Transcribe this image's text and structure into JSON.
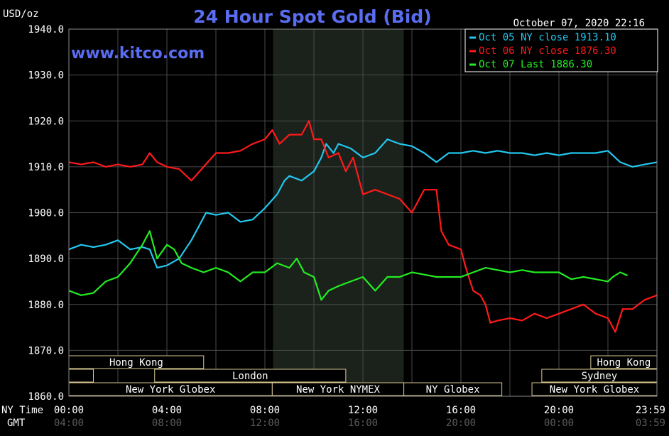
{
  "chart_data": {
    "type": "line",
    "title": "24 Hour Spot Gold (Bid)",
    "website": "www.kitco.com",
    "ylabel": "USD/oz",
    "timestamp": "October 07, 2020 22:16",
    "ylim": [
      1860,
      1940
    ],
    "y_ticks": [
      "1940.0",
      "1930.0",
      "1920.0",
      "1910.0",
      "1900.0",
      "1890.0",
      "1880.0",
      "1870.0",
      "1860.0"
    ],
    "x_range_hours": [
      0,
      24
    ],
    "x_row_label_ny": "NY Time",
    "x_row_label_gmt": "GMT",
    "x_ticks_ny": [
      {
        "h": 0,
        "label": "00:00"
      },
      {
        "h": 4,
        "label": "04:00"
      },
      {
        "h": 8,
        "label": "08:00"
      },
      {
        "h": 12,
        "label": "12:00"
      },
      {
        "h": 16,
        "label": "16:00"
      },
      {
        "h": 20,
        "label": "20:00"
      },
      {
        "h": 24,
        "label": "23:59"
      }
    ],
    "x_ticks_gmt": [
      {
        "h": 0,
        "label": "04:00"
      },
      {
        "h": 4,
        "label": "08:00"
      },
      {
        "h": 8,
        "label": "12:00"
      },
      {
        "h": 12,
        "label": "16:00"
      },
      {
        "h": 16,
        "label": "20:00"
      },
      {
        "h": 20,
        "label": "00:00"
      },
      {
        "h": 24,
        "label": "03:59"
      }
    ],
    "shaded_session_hours": [
      8.33,
      13.67
    ],
    "grid": true,
    "legend_position": "top-right",
    "legend": [
      {
        "label": "Oct 05 NY close 1913.10",
        "color": "#22c8f0"
      },
      {
        "label": "Oct 06 NY close 1876.30",
        "color": "#ff1a1a"
      },
      {
        "label": "Oct 07 Last 1886.30",
        "color": "#22ee22"
      }
    ],
    "series": [
      {
        "name": "Oct 05",
        "color": "#22c8f0",
        "x": [
          0,
          0.5,
          1,
          1.5,
          2,
          2.5,
          3,
          3.3,
          3.6,
          4,
          4.5,
          5,
          5.3,
          5.6,
          6,
          6.5,
          7,
          7.5,
          8,
          8.5,
          8.8,
          9,
          9.5,
          10,
          10.3,
          10.5,
          10.8,
          11,
          11.5,
          12,
          12.5,
          13,
          13.5,
          14,
          14.5,
          15,
          15.5,
          16,
          16.5,
          17,
          17.5,
          18,
          18.5,
          19,
          19.5,
          20,
          20.5,
          21,
          21.5,
          22,
          22.5,
          23,
          23.5,
          24
        ],
        "y": [
          1892,
          1893,
          1892.5,
          1893,
          1894,
          1892,
          1892.5,
          1892,
          1888,
          1888.5,
          1890,
          1894,
          1897,
          1900,
          1899.5,
          1900,
          1898,
          1898.5,
          1901,
          1904,
          1907,
          1908,
          1907,
          1909,
          1912,
          1915,
          1913,
          1915,
          1914,
          1912,
          1913,
          1916,
          1915,
          1914.5,
          1913,
          1911,
          1913,
          1913,
          1913.5,
          1913,
          1913.5,
          1913,
          1913,
          1912.5,
          1913,
          1912.5,
          1913,
          1913,
          1913,
          1913.5,
          1911,
          1910,
          1910.5,
          1911
        ]
      },
      {
        "name": "Oct 06",
        "color": "#ff1a1a",
        "x": [
          0,
          0.5,
          1,
          1.5,
          2,
          2.5,
          3,
          3.3,
          3.6,
          4,
          4.5,
          5,
          5.5,
          6,
          6.5,
          7,
          7.5,
          8,
          8.3,
          8.6,
          9,
          9.5,
          9.8,
          10,
          10.3,
          10.6,
          11,
          11.3,
          11.6,
          12,
          12.5,
          13,
          13.5,
          14,
          14.5,
          15,
          15.2,
          15.5,
          16,
          16.2,
          16.5,
          16.8,
          17,
          17.2,
          17.5,
          18,
          18.5,
          19,
          19.5,
          20,
          20.5,
          21,
          21.5,
          22,
          22.3,
          22.6,
          23,
          23.5,
          24
        ],
        "y": [
          1911,
          1910.5,
          1911,
          1910,
          1910.5,
          1910,
          1910.5,
          1913,
          1911,
          1910,
          1909.5,
          1907,
          1910,
          1913,
          1913,
          1913.5,
          1915,
          1916,
          1918,
          1915,
          1917,
          1917,
          1920,
          1916,
          1916,
          1912,
          1913,
          1909,
          1912,
          1904,
          1905,
          1904,
          1903,
          1900,
          1905,
          1905,
          1896,
          1893,
          1892,
          1888,
          1883,
          1882,
          1880,
          1876,
          1876.5,
          1877,
          1876.5,
          1878,
          1877,
          1878,
          1879,
          1880,
          1878,
          1877,
          1874,
          1879,
          1879,
          1881,
          1882
        ]
      },
      {
        "name": "Oct 07",
        "color": "#22ee22",
        "x": [
          0,
          0.5,
          1,
          1.5,
          2,
          2.5,
          3,
          3.3,
          3.6,
          4,
          4.3,
          4.6,
          5,
          5.5,
          6,
          6.5,
          7,
          7.5,
          8,
          8.5,
          9,
          9.3,
          9.6,
          10,
          10.3,
          10.6,
          11,
          11.5,
          12,
          12.5,
          13,
          13.5,
          14,
          14.5,
          15,
          15.5,
          16,
          16.5,
          17,
          17.5,
          18,
          18.5,
          19,
          19.5,
          20,
          20.5,
          21,
          21.5,
          22,
          22.2,
          22.5,
          22.8
        ],
        "y": [
          1883,
          1882,
          1882.5,
          1885,
          1886,
          1889,
          1893,
          1896,
          1890,
          1893,
          1892,
          1889,
          1888,
          1887,
          1888,
          1887,
          1885,
          1887,
          1887,
          1889,
          1888,
          1890,
          1887,
          1886,
          1881,
          1883,
          1884,
          1885,
          1886,
          1883,
          1886,
          1886,
          1887,
          1886.5,
          1886,
          1886,
          1886,
          1887,
          1888,
          1887.5,
          1887,
          1887.5,
          1887,
          1887,
          1887,
          1885.5,
          1886,
          1885.5,
          1885,
          1886,
          1887,
          1886.3
        ]
      }
    ],
    "market_sessions": [
      {
        "label": "Hong Kong",
        "rows": [
          0
        ],
        "start": 0,
        "end": 5.5
      },
      {
        "label": "",
        "rows": [
          1
        ],
        "start": 0,
        "end": 1
      },
      {
        "label": "London",
        "rows": [
          1
        ],
        "start": 3.5,
        "end": 11.3
      },
      {
        "label": "New York Globex",
        "rows": [
          2
        ],
        "start": 0,
        "end": 8.3
      },
      {
        "label": "New York NYMEX",
        "rows": [
          2
        ],
        "start": 8.3,
        "end": 13.67
      },
      {
        "label": "NY Globex",
        "rows": [
          2
        ],
        "start": 13.67,
        "end": 17.67
      },
      {
        "label": "Sydney",
        "rows": [
          1
        ],
        "start": 19.3,
        "end": 24
      },
      {
        "label": "Hong Kong",
        "rows": [
          0
        ],
        "start": 21.3,
        "end": 24
      },
      {
        "label": "New York Globex",
        "rows": [
          2
        ],
        "start": 18.9,
        "end": 24
      }
    ]
  }
}
